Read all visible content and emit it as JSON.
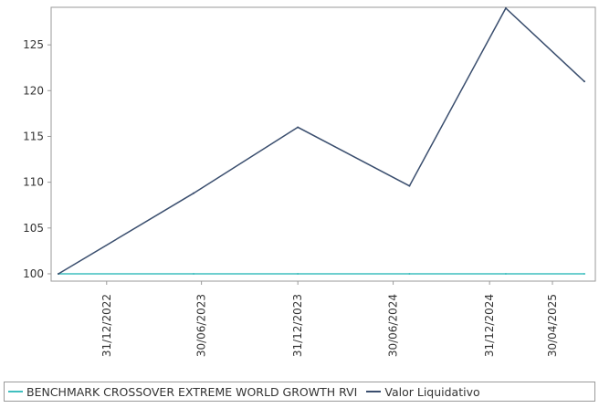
{
  "chart_data": {
    "type": "line",
    "x_ticks": [
      "31/12/2022",
      "30/06/2023",
      "31/12/2023",
      "30/06/2024",
      "31/12/2024",
      "30/04/2025"
    ],
    "y_ticks": [
      100,
      105,
      110,
      115,
      120,
      125
    ],
    "ylim": [
      99.2,
      129.1
    ],
    "grid": false,
    "legend_placement": "bottom",
    "series": [
      {
        "name": "BENCHMARK CROSSOVER EXTREME WORLD GROWTH RVI",
        "color": "#3fbfbf",
        "points": [
          {
            "x": "2022-09-30",
            "y": 100.0
          },
          {
            "x": "2023-06-15",
            "y": 100.0
          },
          {
            "x": "2023-12-31",
            "y": 100.0
          },
          {
            "x": "2024-07-31",
            "y": 100.0
          },
          {
            "x": "2025-01-31",
            "y": 100.0
          },
          {
            "x": "2025-06-30",
            "y": 100.0
          }
        ]
      },
      {
        "name": "Valor Liquidativo",
        "color": "#3a4e6e",
        "points": [
          {
            "x": "2022-09-30",
            "y": 100.0
          },
          {
            "x": "2023-06-15",
            "y": 108.8
          },
          {
            "x": "2023-12-31",
            "y": 116.0
          },
          {
            "x": "2024-07-31",
            "y": 109.6
          },
          {
            "x": "2025-01-31",
            "y": 129.0
          },
          {
            "x": "2025-06-30",
            "y": 121.0
          }
        ]
      }
    ]
  }
}
